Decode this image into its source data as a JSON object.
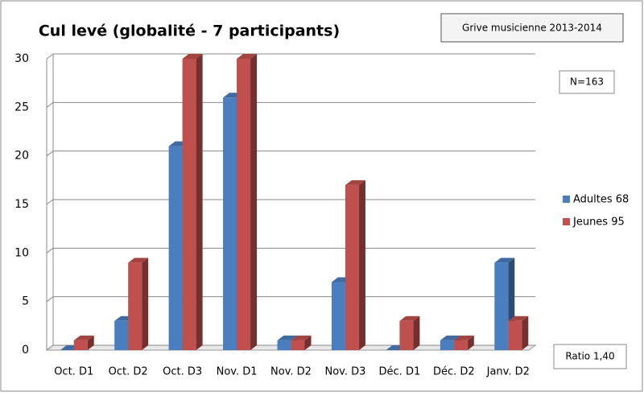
{
  "chart_data": {
    "type": "bar",
    "title": "Cul levé (globalité  - 7 participants)",
    "annotations": [
      "Grive musicienne 2013-2014",
      "N=163",
      "Ratio 1,40"
    ],
    "categories": [
      "Oct. D1",
      "Oct. D2",
      "Oct. D3",
      "Nov. D1",
      "Nov. D2",
      "Nov. D3",
      "Déc. D1",
      "Déc. D2",
      "Janv. D2"
    ],
    "series": [
      {
        "name": "Adultes 68",
        "color": "#4a7ebf",
        "values": [
          0,
          3,
          21,
          26,
          1,
          7,
          0,
          1,
          9
        ]
      },
      {
        "name": "Jeunes 95",
        "color": "#c0504d",
        "values": [
          1,
          9,
          30,
          30,
          1,
          17,
          3,
          1,
          3
        ]
      }
    ],
    "ylim": [
      0,
      30
    ],
    "yticks": [
      0,
      5,
      10,
      15,
      20,
      25,
      30
    ],
    "grid": true,
    "legend": "right"
  }
}
